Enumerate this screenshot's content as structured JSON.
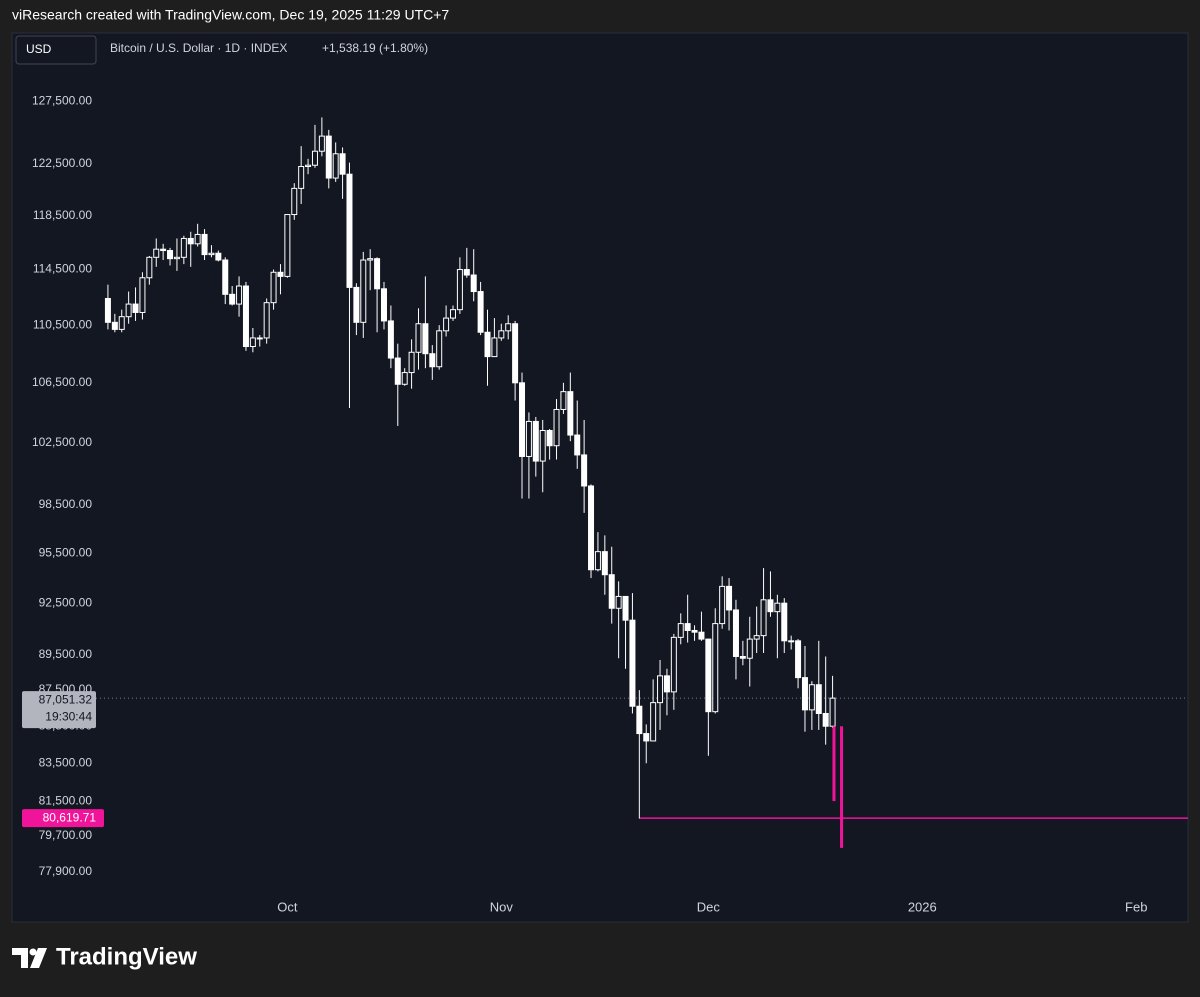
{
  "header": "viResearch created with TradingView.com, Dec 19, 2025 11:29 UTC+7",
  "currency": "USD",
  "symbol": "Bitcoin / U.S. Dollar · 1D · INDEX",
  "change": "+1,538.19 (+1.80%)",
  "brand": "TradingView",
  "chart_data": {
    "type": "candlestick",
    "log_scale": true,
    "grid": false,
    "color": "#ffffff",
    "series": [
      {
        "open": [
          112400,
          110700,
          110200,
          111100,
          112000,
          111400,
          113900,
          115400,
          116000,
          115900,
          115300,
          115400,
          116800,
          116400,
          117100,
          115600,
          115700,
          115200,
          112700,
          112000,
          113300,
          109000,
          109600,
          109600,
          112100,
          114300,
          114000,
          118600,
          120600,
          122300,
          122400,
          123500,
          124700,
          121400,
          123300,
          121700,
          113200,
          110700,
          115200,
          115300,
          113100,
          110800,
          108200,
          106400,
          107200,
          108600,
          110600,
          108500,
          107600,
          110100,
          111000,
          111600,
          114500,
          114100,
          112900,
          110000,
          108300,
          109600,
          110100,
          110600,
          106500,
          101600,
          103900,
          101300,
          103300,
          102300,
          104700,
          105900,
          103000,
          101700,
          99700,
          94500,
          95600,
          94200,
          92200,
          92900,
          91500,
          86600,
          85100,
          84700,
          86800,
          88300,
          87400,
          90500,
          91300,
          90900,
          90800,
          90400,
          86300,
          91300,
          93500,
          92100,
          89400,
          89300,
          90400,
          90600,
          92700,
          92000,
          92500,
          90300,
          90300,
          88200,
          86400,
          87800,
          86200,
          85500
        ],
        "high": [
          113400,
          111300,
          111600,
          112900,
          113200,
          114300,
          115500,
          116800,
          116400,
          116100,
          116800,
          117000,
          117300,
          117900,
          117500,
          116300,
          115900,
          115400,
          113300,
          114000,
          113600,
          110300,
          109800,
          112400,
          114500,
          114900,
          118600,
          121000,
          123900,
          122900,
          125600,
          126200,
          125200,
          124200,
          123800,
          122600,
          113500,
          115800,
          116000,
          115400,
          113600,
          111900,
          109200,
          107500,
          109500,
          111700,
          114000,
          109100,
          110500,
          111900,
          111900,
          115400,
          116100,
          116000,
          113600,
          111600,
          111000,
          110600,
          111200,
          110800,
          107200,
          104500,
          104200,
          104000,
          103400,
          105400,
          106500,
          107200,
          105300,
          104000,
          99800,
          96800,
          96600,
          95900,
          93800,
          92900,
          93100,
          87500,
          85600,
          88100,
          89200,
          88700,
          90700,
          91900,
          93000,
          91200,
          92000,
          90400,
          92200,
          94100,
          94000,
          92700,
          90300,
          91700,
          92300,
          94600,
          94400,
          93000,
          92800,
          90600,
          90400,
          90000,
          88000,
          90300,
          89400,
          88300
        ],
        "low": [
          110200,
          110000,
          110000,
          110600,
          110800,
          110900,
          113400,
          114700,
          115200,
          114800,
          114400,
          114900,
          114700,
          116200,
          115200,
          115400,
          115100,
          112000,
          111900,
          111100,
          108700,
          108600,
          109000,
          109200,
          111600,
          112700,
          113900,
          118200,
          119400,
          121700,
          122200,
          123100,
          120600,
          121100,
          119800,
          104800,
          109800,
          109600,
          113000,
          110000,
          110200,
          107500,
          103600,
          106300,
          106100,
          107400,
          107500,
          106700,
          107400,
          109700,
          110800,
          111300,
          113900,
          112200,
          109800,
          106300,
          108300,
          109400,
          109500,
          105300,
          98900,
          98900,
          100300,
          99300,
          101400,
          101400,
          104400,
          102600,
          100800,
          98000,
          94000,
          94400,
          93000,
          91300,
          89300,
          88700,
          86200,
          80600,
          83500,
          84700,
          85300,
          86100,
          86400,
          90100,
          90200,
          90300,
          90300,
          83900,
          86200,
          91000,
          90900,
          88100,
          88900,
          87700,
          89600,
          89600,
          91700,
          89300,
          89600,
          89800,
          87600,
          85200,
          85300,
          85300,
          84500,
          85400
        ],
        "close": [
          110700,
          110200,
          111100,
          112000,
          111400,
          113900,
          115400,
          116000,
          115900,
          115300,
          115400,
          116800,
          116400,
          117100,
          115600,
          115700,
          115200,
          112700,
          112000,
          113300,
          109000,
          109600,
          109600,
          112100,
          114300,
          114000,
          118600,
          120600,
          122300,
          122400,
          123500,
          124700,
          121400,
          123300,
          121700,
          113200,
          110700,
          115200,
          115300,
          113100,
          110800,
          108200,
          106400,
          107200,
          108600,
          110600,
          108500,
          107600,
          110100,
          111000,
          111600,
          114500,
          114100,
          112900,
          110000,
          108300,
          109600,
          110100,
          110600,
          106500,
          101600,
          103900,
          101300,
          103300,
          102300,
          104700,
          105900,
          103000,
          101700,
          99700,
          94500,
          95600,
          94200,
          92200,
          92900,
          91500,
          86600,
          85100,
          84700,
          86800,
          88300,
          87400,
          90500,
          91300,
          90900,
          90800,
          90400,
          86300,
          91300,
          93500,
          92100,
          89400,
          89300,
          90400,
          90600,
          92700,
          92000,
          92500,
          90300,
          90300,
          88200,
          86400,
          87800,
          86200,
          85500,
          87051.32
        ]
      }
    ],
    "xlim": [
      -13.9,
      156.5
    ],
    "xticks": [
      {
        "value": 26,
        "label": "Oct"
      },
      {
        "value": 57,
        "label": "Nov"
      },
      {
        "value": 87,
        "label": "Dec"
      },
      {
        "value": 118,
        "label": "2026"
      },
      {
        "value": 149,
        "label": "Feb"
      }
    ],
    "ylim": [
      76900,
      133200
    ],
    "yticks": [
      {
        "value": 127500,
        "label": "127,500.00"
      },
      {
        "value": 122500,
        "label": "122,500.00"
      },
      {
        "value": 118500,
        "label": "118,500.00"
      },
      {
        "value": 114500,
        "label": "114,500.00"
      },
      {
        "value": 110500,
        "label": "110,500.00"
      },
      {
        "value": 106500,
        "label": "106,500.00"
      },
      {
        "value": 102500,
        "label": "102,500.00"
      },
      {
        "value": 98500,
        "label": "98,500.00"
      },
      {
        "value": 95500,
        "label": "95,500.00"
      },
      {
        "value": 92500,
        "label": "92,500.00"
      },
      {
        "value": 89500,
        "label": "89,500.00"
      },
      {
        "value": 87500,
        "label": "87,500.00"
      },
      {
        "value": 85500,
        "label": "85,500.00"
      },
      {
        "value": 83500,
        "label": "83,500.00"
      },
      {
        "value": 81500,
        "label": "81,500.00"
      },
      {
        "value": 79700,
        "label": "79,700.00"
      },
      {
        "value": 77900,
        "label": "77,900.00"
      }
    ],
    "last_price": {
      "value": 87051.32,
      "label": "87,051.32",
      "countdown": "19:30:44"
    },
    "level_line": {
      "value": 80619.71,
      "label": "80,619.71",
      "start": 77,
      "color": "#f0149a"
    },
    "drawn_bars": [
      {
        "x": 105.2,
        "top": 85500,
        "bottom": 81500
      },
      {
        "x": 106.3,
        "top": 85500,
        "bottom": 79100
      }
    ]
  }
}
